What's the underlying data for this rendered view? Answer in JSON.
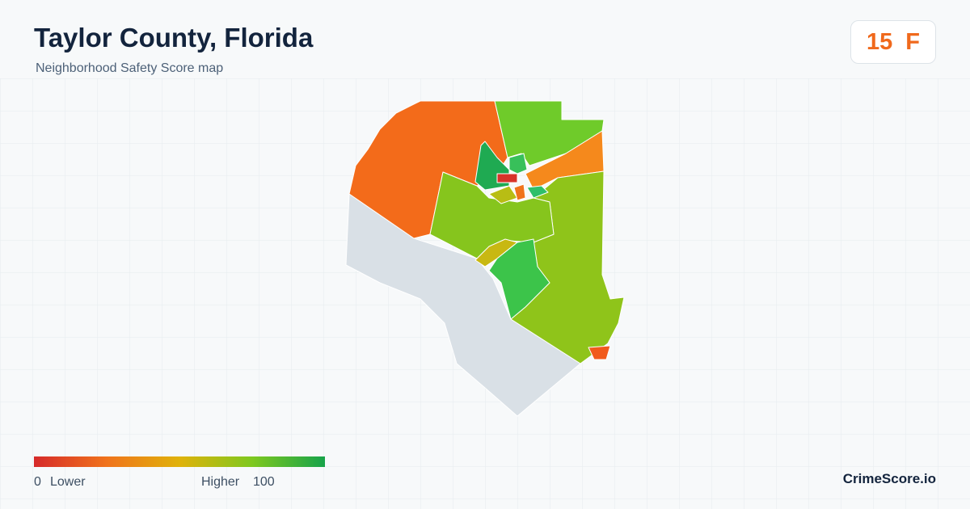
{
  "header": {
    "title": "Taylor County, Florida",
    "subtitle": "Neighborhood Safety Score map"
  },
  "score": {
    "value": 15,
    "grade": "F"
  },
  "legend": {
    "min": 0,
    "min_label": "Lower",
    "max_label": "Higher",
    "max": 100
  },
  "footer": {
    "brand": "CrimeScore.io"
  }
}
